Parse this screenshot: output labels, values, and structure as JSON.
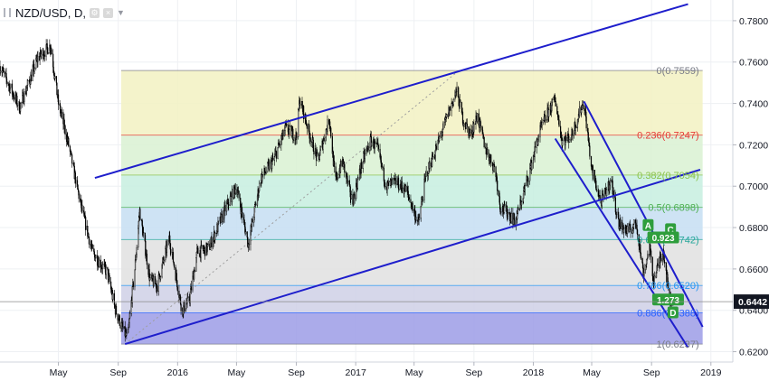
{
  "header": {
    "symbol": "NZD/USD, D,",
    "icons": [
      "settings-icon",
      "close-icon",
      "chevron-down-icon"
    ]
  },
  "chart_data": {
    "type": "candlestick",
    "ylim": [
      0.615,
      0.79
    ],
    "y_ticks": [
      0.62,
      0.64,
      0.66,
      0.68,
      0.7,
      0.72,
      0.74,
      0.76,
      0.78
    ],
    "y_tick_labels": [
      "0.6200",
      "0.6400",
      "0.6600",
      "0.6800",
      "0.7000",
      "0.7200",
      "0.7400",
      "0.7600",
      "0.7800"
    ],
    "x_ticks": [
      {
        "date": "2015-05",
        "label": "May"
      },
      {
        "date": "2015-09",
        "label": "Sep"
      },
      {
        "date": "2016-01",
        "label": "2016"
      },
      {
        "date": "2016-05",
        "label": "May"
      },
      {
        "date": "2016-09",
        "label": "Sep"
      },
      {
        "date": "2017-01",
        "label": "2017"
      },
      {
        "date": "2017-05",
        "label": "May"
      },
      {
        "date": "2017-09",
        "label": "Sep"
      },
      {
        "date": "2018-01",
        "label": "2018"
      },
      {
        "date": "2018-05",
        "label": "May"
      },
      {
        "date": "2018-09",
        "label": "Sep"
      },
      {
        "date": "2019-01",
        "label": "2019"
      }
    ],
    "price_path": [
      [
        "2015-01-01",
        0.758
      ],
      [
        "2015-02-10",
        0.738
      ],
      [
        "2015-03-20",
        0.762
      ],
      [
        "2015-04-15",
        0.768
      ],
      [
        "2015-05-01",
        0.74
      ],
      [
        "2015-05-20",
        0.722
      ],
      [
        "2015-06-15",
        0.692
      ],
      [
        "2015-07-10",
        0.668
      ],
      [
        "2015-08-10",
        0.658
      ],
      [
        "2015-08-25",
        0.641
      ],
      [
        "2015-09-07",
        0.633
      ],
      [
        "2015-09-20",
        0.626
      ],
      [
        "2015-10-05",
        0.66
      ],
      [
        "2015-10-15",
        0.688
      ],
      [
        "2015-11-05",
        0.655
      ],
      [
        "2015-11-20",
        0.652
      ],
      [
        "2015-12-15",
        0.675
      ],
      [
        "2016-01-10",
        0.64
      ],
      [
        "2016-01-25",
        0.645
      ],
      [
        "2016-02-10",
        0.668
      ],
      [
        "2016-03-05",
        0.67
      ],
      [
        "2016-04-10",
        0.69
      ],
      [
        "2016-05-01",
        0.7
      ],
      [
        "2016-05-25",
        0.672
      ],
      [
        "2016-06-20",
        0.704
      ],
      [
        "2016-07-15",
        0.712
      ],
      [
        "2016-08-10",
        0.728
      ],
      [
        "2016-09-01",
        0.724
      ],
      [
        "2016-09-08",
        0.742
      ],
      [
        "2016-09-25",
        0.728
      ],
      [
        "2016-10-15",
        0.712
      ],
      [
        "2016-11-08",
        0.733
      ],
      [
        "2016-11-20",
        0.702
      ],
      [
        "2016-12-05",
        0.712
      ],
      [
        "2016-12-25",
        0.692
      ],
      [
        "2017-01-15",
        0.712
      ],
      [
        "2017-02-01",
        0.722
      ],
      [
        "2017-02-15",
        0.718
      ],
      [
        "2017-03-05",
        0.7
      ],
      [
        "2017-03-25",
        0.702
      ],
      [
        "2017-04-15",
        0.698
      ],
      [
        "2017-05-10",
        0.682
      ],
      [
        "2017-05-25",
        0.705
      ],
      [
        "2017-06-15",
        0.718
      ],
      [
        "2017-07-10",
        0.735
      ],
      [
        "2017-07-27",
        0.746
      ],
      [
        "2017-08-10",
        0.732
      ],
      [
        "2017-08-25",
        0.725
      ],
      [
        "2017-09-08",
        0.734
      ],
      [
        "2017-09-25",
        0.718
      ],
      [
        "2017-10-15",
        0.708
      ],
      [
        "2017-10-25",
        0.69
      ],
      [
        "2017-11-10",
        0.687
      ],
      [
        "2017-11-25",
        0.683
      ],
      [
        "2017-12-10",
        0.695
      ],
      [
        "2017-12-25",
        0.708
      ],
      [
        "2018-01-15",
        0.727
      ],
      [
        "2018-02-01",
        0.736
      ],
      [
        "2018-02-15",
        0.742
      ],
      [
        "2018-03-01",
        0.722
      ],
      [
        "2018-03-20",
        0.724
      ],
      [
        "2018-04-05",
        0.735
      ],
      [
        "2018-04-15",
        0.741
      ],
      [
        "2018-05-01",
        0.708
      ],
      [
        "2018-05-20",
        0.692
      ],
      [
        "2018-06-10",
        0.703
      ],
      [
        "2018-06-25",
        0.682
      ],
      [
        "2018-07-15",
        0.678
      ],
      [
        "2018-08-01",
        0.682
      ],
      [
        "2018-08-15",
        0.658
      ],
      [
        "2018-08-28",
        0.67
      ],
      [
        "2018-09-05",
        0.654
      ],
      [
        "2018-09-15",
        0.662
      ],
      [
        "2018-09-25",
        0.67
      ],
      [
        "2018-10-08",
        0.645
      ],
      [
        "2018-10-15",
        0.644
      ]
    ],
    "last_price": 0.6442,
    "last_price_label": "0.6442",
    "fib_retracement": {
      "levels": [
        {
          "ratio": "1",
          "price": 0.6237,
          "label": "1(0.6237)",
          "color": "#9c9ce6"
        },
        {
          "ratio": "0.886",
          "price": 0.6388,
          "label": "0.886(0.6388)",
          "color": "#cfd0e6"
        },
        {
          "ratio": "0.786",
          "price": 0.652,
          "label": "0.786(0.6520)",
          "color": "#e0e0e0"
        },
        {
          "ratio": "0.618",
          "price": 0.6742,
          "label": "0.618(0.6742)",
          "color": "#c6def2"
        },
        {
          "ratio": "0.5",
          "price": 0.6898,
          "label": "0.5(0.6898)",
          "color": "#c7eedf"
        },
        {
          "ratio": "0.382",
          "price": 0.7054,
          "label": "0.382(0.7054)",
          "color": "#d9f1d2"
        },
        {
          "ratio": "0.236",
          "price": 0.7247,
          "label": "0.236(0.7247)",
          "color": "#f2f1c2"
        },
        {
          "ratio": "0",
          "price": 0.7559,
          "label": "0(0.7559)",
          "color": "#f4c6cb"
        }
      ],
      "start": "2015-09-07",
      "end": "2018-12-15",
      "label_colors": {
        "0": "#787b86",
        "0.236": "#e53935",
        "0.382": "#8bc34a",
        "0.5": "#4caf50",
        "0.618": "#26a69a",
        "0.786": "#2196f3",
        "0.886": "#2962ff",
        "1": "#787b86"
      },
      "trend_line": [
        [
          "2015-09-15",
          0.6237
        ],
        [
          "2017-08-01",
          0.7559
        ]
      ]
    },
    "channel_lines": [
      {
        "from": [
          "2015-07-15",
          0.704
        ],
        "to": [
          "2018-11-15",
          0.788
        ]
      },
      {
        "from": [
          "2015-09-15",
          0.6237
        ],
        "to": [
          "2018-12-10",
          0.708
        ]
      },
      {
        "from": [
          "2018-04-15",
          0.741
        ],
        "to": [
          "2018-12-15",
          0.632
        ]
      },
      {
        "from": [
          "2018-02-15",
          0.723
        ],
        "to": [
          "2018-11-15",
          0.622
        ]
      }
    ],
    "abcd_points": [
      {
        "label": "A",
        "date": "2018-08-25",
        "price": 0.681
      },
      {
        "label": "C",
        "date": "2018-10-10",
        "price": 0.679
      },
      {
        "label": "D",
        "date": "2018-10-15",
        "price": 0.6388
      }
    ],
    "abcd_ratios": [
      {
        "label": "0.923",
        "date": "2018-09-25",
        "price": 0.675
      },
      {
        "label": "1.273",
        "date": "2018-10-05",
        "price": 0.645
      }
    ],
    "colors": {
      "candle": "#000000",
      "channel": "#1e1ecc",
      "pattern": "#2e9e3c",
      "axis_text": "#131722",
      "grid": "#eef0f3"
    }
  }
}
